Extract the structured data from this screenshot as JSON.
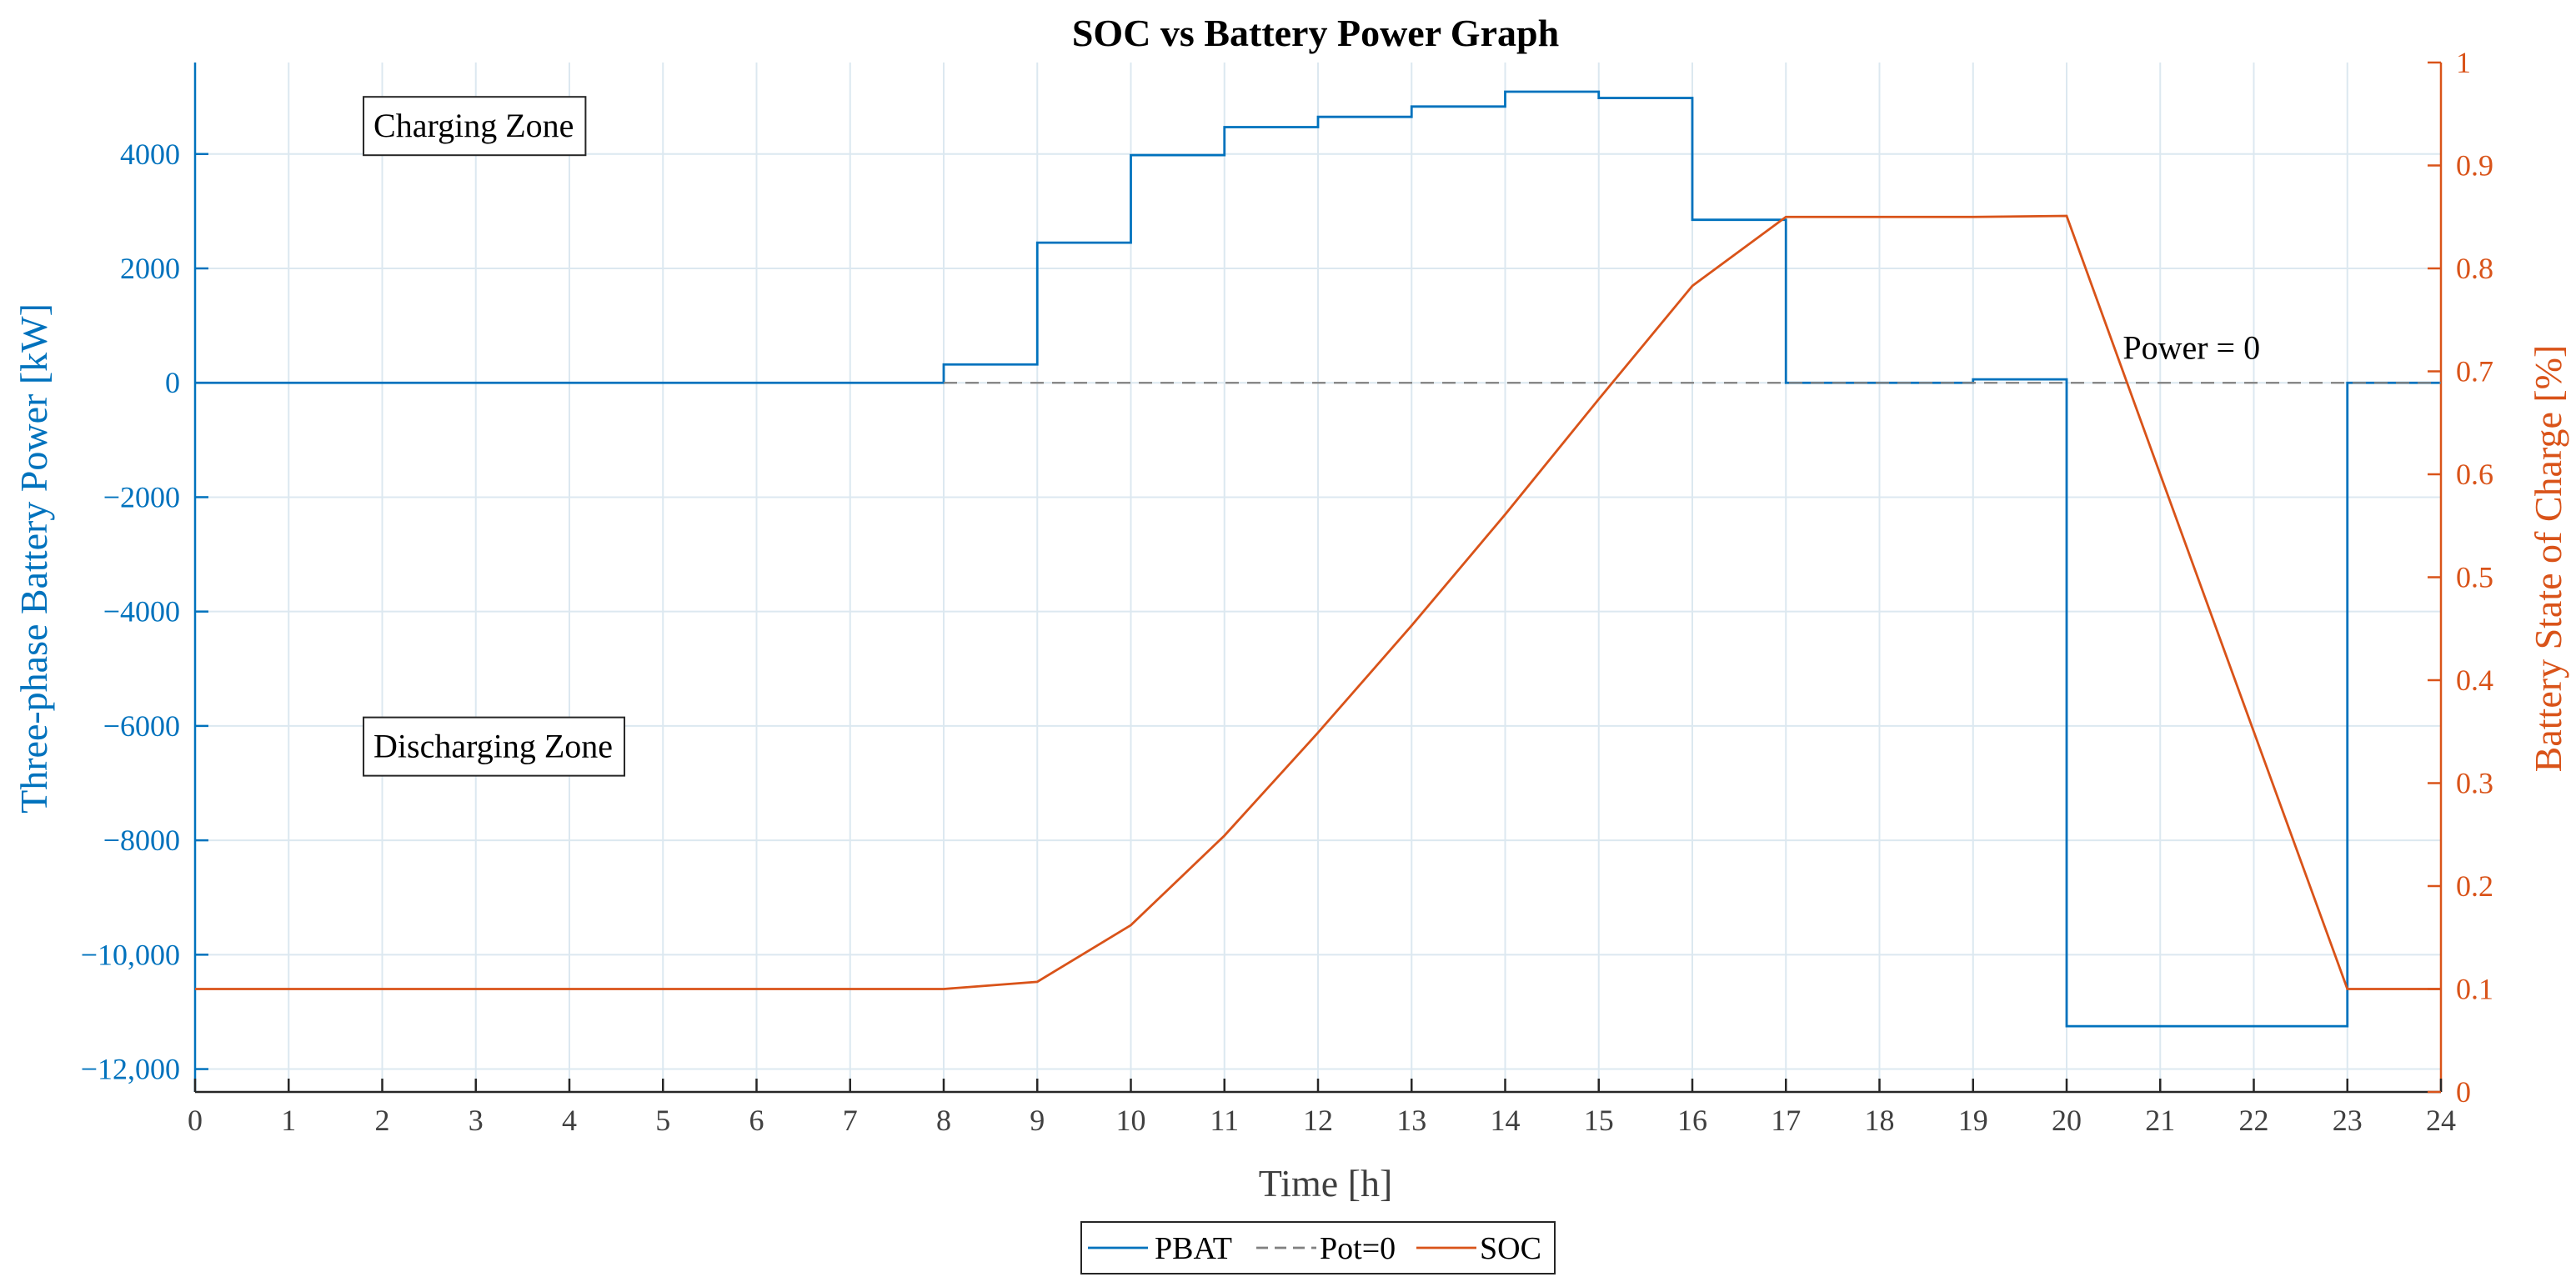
{
  "chart_data": {
    "type": "line",
    "title": "SOC vs Battery Power Graph",
    "xlabel": "Time  [h]",
    "ylabel_left": "Three-phase Battery Power [kW]",
    "ylabel_right": "Battery State of Charge [%]",
    "xlim": [
      0,
      24
    ],
    "ylim_left": [
      -12400,
      5600
    ],
    "ylim_right": [
      0,
      1
    ],
    "x_ticks": [
      0,
      1,
      2,
      3,
      4,
      5,
      6,
      7,
      8,
      9,
      10,
      11,
      12,
      13,
      14,
      15,
      16,
      17,
      18,
      19,
      20,
      21,
      22,
      23,
      24
    ],
    "y_left_ticks": [
      -12000,
      -10000,
      -8000,
      -6000,
      -4000,
      -2000,
      0,
      2000,
      4000
    ],
    "y_left_tick_labels": [
      "−12,000",
      "−10,000",
      "−8000",
      "−6000",
      "−4000",
      "−2000",
      "0",
      "2000",
      "4000"
    ],
    "y_right_ticks": [
      0,
      0.1,
      0.2,
      0.3,
      0.4,
      0.5,
      0.6,
      0.7,
      0.8,
      0.9,
      1
    ],
    "y_right_tick_labels": [
      "0",
      "0.1",
      "0.2",
      "0.3",
      "0.4",
      "0.5",
      "0.6",
      "0.7",
      "0.8",
      "0.9",
      "1"
    ],
    "grid": true,
    "legend_position": "bottom-center",
    "colors": {
      "pbat": "#0072BD",
      "soc": "#D95319",
      "pot0": "#808080",
      "grid": "#DCE8F0"
    },
    "series": [
      {
        "name": "PBAT",
        "axis": "left",
        "style": "step",
        "x": [
          0,
          8,
          9,
          10,
          11,
          12,
          13,
          14,
          15,
          16,
          17,
          18,
          19,
          20,
          23,
          24
        ],
        "values": [
          0,
          320,
          2450,
          3980,
          4470,
          4650,
          4830,
          5090,
          4980,
          2850,
          0,
          0,
          60,
          -11250,
          0,
          0
        ]
      },
      {
        "name": "Pot=0",
        "axis": "left",
        "style": "dashed",
        "x": [
          8,
          24
        ],
        "values": [
          0,
          0
        ]
      },
      {
        "name": "SOC",
        "axis": "right",
        "style": "line",
        "x": [
          0,
          8,
          9,
          10,
          11,
          12,
          13,
          14,
          15,
          16,
          17,
          18,
          19,
          20,
          21,
          22,
          23,
          24
        ],
        "values": [
          0.1,
          0.1,
          0.107,
          0.162,
          0.249,
          0.349,
          0.453,
          0.561,
          0.673,
          0.783,
          0.85,
          0.85,
          0.85,
          0.851,
          0.6,
          0.35,
          0.1,
          0.1
        ]
      }
    ],
    "annotations": [
      {
        "text": "Charging Zone",
        "x": 1.8,
        "y": 4300,
        "boxed": true
      },
      {
        "text": "Discharging Zone",
        "x": 1.8,
        "y": -6550,
        "boxed": true
      },
      {
        "text": "Power = 0",
        "x": 20.6,
        "y": 420,
        "boxed": false
      }
    ],
    "legend": [
      "PBAT",
      "Pot=0",
      "SOC"
    ]
  }
}
